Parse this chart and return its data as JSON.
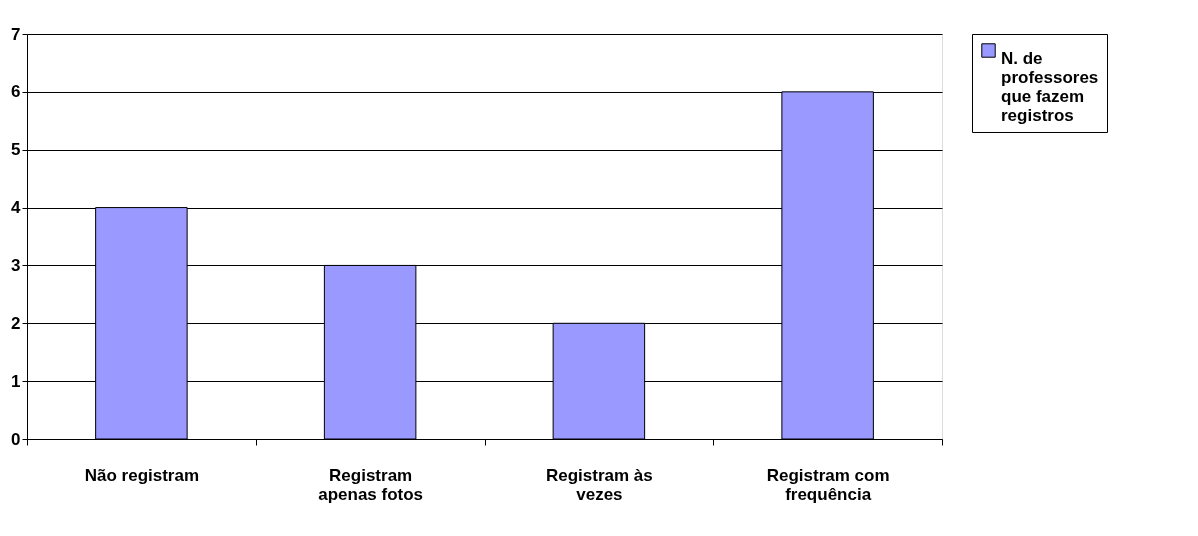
{
  "chart_data": {
    "type": "bar",
    "categories": [
      "Não registram",
      "Registram apenas fotos",
      "Registram às vezes",
      "Registram com frequência"
    ],
    "series": [
      {
        "name": "N. de professores que fazem registros",
        "color": "#9999ff",
        "values": [
          4,
          3,
          2,
          6
        ]
      }
    ],
    "ylim": [
      0,
      7
    ],
    "yticks": [
      0,
      1,
      2,
      3,
      4,
      5,
      6,
      7
    ],
    "grid": "y",
    "legend": "right"
  }
}
